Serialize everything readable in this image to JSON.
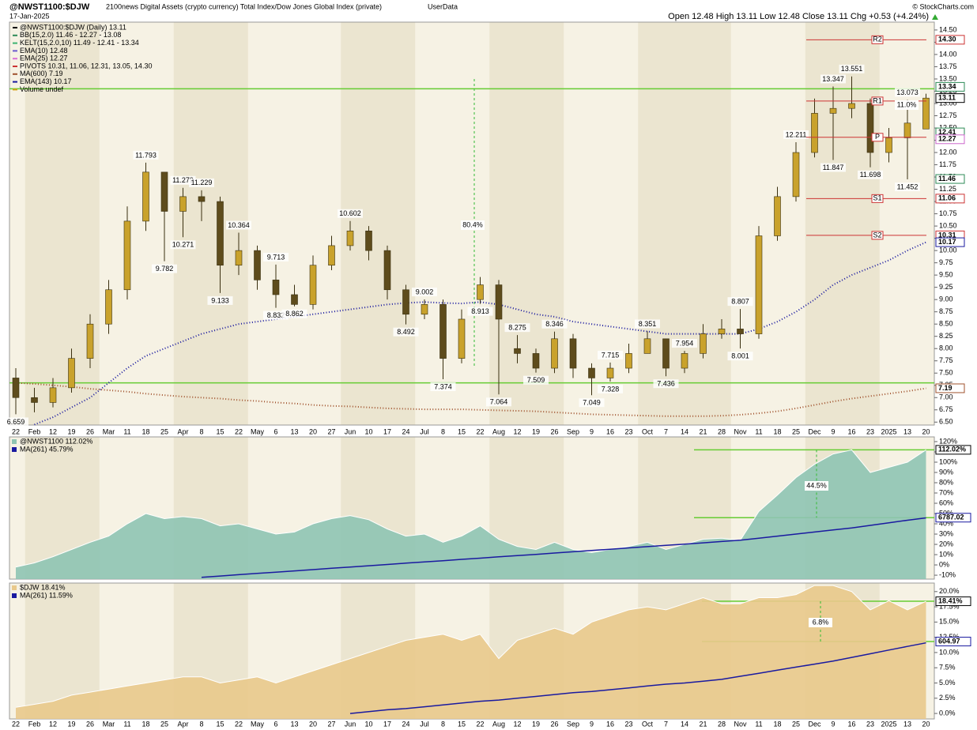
{
  "header": {
    "symbol": "@NWST1100:$DJW",
    "description": "2100news Digital Assets (crypto currency) Total Index/Dow Jones Global Index (private)",
    "source": "UserData",
    "date": "17-Jan-2025",
    "quote": "Open 12.48  High 13.11  Low 12.48  Close 13.11  Chg +0.53 (+4.24%)",
    "watermark": "© StockCharts.com"
  },
  "chart_data": [
    {
      "type": "candlestick",
      "name": "@NWST1100:$DJW (Daily) 13.11",
      "categories": [
        "22",
        "Feb",
        "12",
        "19",
        "26",
        "Mar",
        "11",
        "18",
        "25",
        "Apr",
        "8",
        "15",
        "22",
        "May",
        "6",
        "13",
        "20",
        "27",
        "Jun",
        "10",
        "17",
        "24",
        "Jul",
        "8",
        "15",
        "22",
        "Aug",
        "12",
        "19",
        "26",
        "Sep",
        "9",
        "16",
        "23",
        "Oct",
        "7",
        "14",
        "21",
        "28",
        "Nov",
        "11",
        "18",
        "25",
        "Dec",
        "9",
        "16",
        "23",
        "2025",
        "13",
        "20"
      ],
      "open": [
        7.4,
        7.0,
        6.9,
        7.2,
        7.8,
        8.5,
        9.2,
        10.6,
        11.6,
        10.8,
        11.1,
        11.0,
        9.7,
        10.0,
        9.4,
        9.1,
        8.9,
        9.7,
        10.1,
        10.4,
        10.0,
        9.2,
        8.7,
        8.9,
        7.8,
        9.0,
        9.3,
        8.0,
        7.9,
        7.6,
        8.2,
        7.6,
        7.4,
        7.6,
        7.9,
        8.2,
        7.6,
        7.9,
        8.3,
        8.4,
        8.3,
        10.3,
        11.1,
        12.0,
        12.8,
        12.9,
        13.0,
        12.0,
        12.3,
        12.48
      ],
      "high": [
        7.6,
        7.2,
        7.4,
        8.0,
        8.7,
        9.4,
        10.9,
        11.793,
        11.6,
        11.279,
        11.229,
        11.1,
        10.364,
        10.1,
        9.713,
        9.3,
        9.9,
        10.3,
        10.602,
        10.5,
        10.1,
        9.3,
        9.002,
        9.0,
        8.8,
        9.46,
        9.4,
        8.275,
        8.0,
        8.346,
        8.3,
        7.7,
        7.715,
        8.1,
        8.351,
        8.2,
        7.954,
        8.5,
        8.6,
        8.807,
        10.5,
        11.3,
        12.211,
        13.1,
        13.347,
        13.551,
        13.1,
        12.5,
        13.073,
        13.2
      ],
      "low": [
        6.659,
        6.7,
        6.8,
        7.1,
        7.6,
        8.3,
        9.0,
        10.4,
        9.782,
        10.271,
        10.6,
        9.133,
        9.5,
        9.2,
        8.832,
        8.862,
        8.8,
        9.6,
        10.0,
        9.8,
        9.0,
        8.492,
        8.6,
        7.374,
        7.7,
        8.913,
        7.064,
        7.7,
        7.509,
        7.5,
        7.4,
        7.049,
        7.328,
        7.5,
        7.9,
        7.436,
        7.5,
        7.8,
        8.2,
        8.001,
        8.2,
        10.2,
        11.0,
        11.9,
        11.847,
        12.7,
        11.698,
        11.8,
        11.452,
        12.48
      ],
      "close": [
        7.0,
        6.9,
        7.2,
        7.8,
        8.5,
        9.2,
        10.6,
        11.6,
        10.8,
        11.1,
        11.0,
        9.7,
        10.0,
        9.4,
        9.1,
        8.9,
        9.7,
        10.1,
        10.4,
        10.0,
        9.2,
        8.7,
        8.9,
        7.8,
        8.6,
        9.3,
        8.6,
        7.9,
        7.6,
        8.2,
        7.6,
        7.4,
        7.6,
        7.9,
        8.2,
        7.6,
        7.9,
        8.3,
        8.4,
        8.3,
        10.3,
        11.1,
        12.0,
        12.8,
        12.9,
        13.0,
        12.0,
        12.3,
        12.6,
        13.11
      ],
      "high_labels": [
        null,
        null,
        null,
        null,
        null,
        null,
        null,
        11.793,
        null,
        11.279,
        11.229,
        null,
        10.364,
        null,
        9.713,
        null,
        null,
        null,
        10.602,
        null,
        null,
        null,
        9.002,
        null,
        null,
        null,
        null,
        8.275,
        null,
        8.346,
        null,
        null,
        7.715,
        null,
        8.351,
        null,
        7.954,
        null,
        null,
        8.807,
        null,
        null,
        12.211,
        null,
        13.347,
        13.551,
        null,
        null,
        13.073,
        null
      ],
      "low_labels": [
        6.659,
        null,
        null,
        null,
        null,
        null,
        null,
        null,
        9.782,
        10.271,
        null,
        9.133,
        null,
        null,
        8.832,
        8.862,
        null,
        null,
        null,
        null,
        null,
        8.492,
        null,
        7.374,
        null,
        8.913,
        7.064,
        null,
        7.509,
        null,
        null,
        7.049,
        7.328,
        null,
        null,
        7.436,
        null,
        null,
        null,
        8.001,
        null,
        null,
        null,
        null,
        11.847,
        null,
        11.698,
        null,
        11.452,
        null
      ],
      "up_color": "#c9a22c",
      "down_color": "#5e4c1c",
      "indicators": [
        {
          "name": "BB(15,2.0) 11.46 - 12.27 - 13.08",
          "color": "#2e8b57"
        },
        {
          "name": "KELT(15,2.0,10) 11.49 - 12.41 - 13.34",
          "color": "#3cb371"
        },
        {
          "name": "EMA(10) 12.48",
          "color": "#6a5acd"
        },
        {
          "name": "EMA(25) 12.27",
          "color": "#da70d6"
        },
        {
          "name": "PIVOTS 10.31, 11.06, 12.31, 13.05, 14.30",
          "color": "#cc3333"
        },
        {
          "name": "Volume undef",
          "color": "#d4a017"
        }
      ],
      "series": [
        {
          "name": "MA(600) 7.19",
          "color": "#a0522d",
          "values": [
            7.3,
            7.28,
            7.25,
            7.22,
            7.18,
            7.15,
            7.12,
            7.08,
            7.05,
            7.02,
            7.0,
            6.98,
            6.95,
            6.93,
            6.9,
            6.88,
            6.85,
            6.83,
            6.82,
            6.8,
            6.78,
            6.77,
            6.76,
            6.76,
            6.76,
            6.75,
            6.74,
            6.73,
            6.72,
            6.7,
            6.68,
            6.66,
            6.65,
            6.64,
            6.63,
            6.62,
            6.62,
            6.62,
            6.63,
            6.65,
            6.68,
            6.72,
            6.78,
            6.85,
            6.92,
            6.98,
            7.03,
            7.08,
            7.13,
            7.19
          ]
        },
        {
          "name": "EMA(143) 10.17",
          "color": "#1a1aa0",
          "values": [
            null,
            6.45,
            6.6,
            6.8,
            7.0,
            7.3,
            7.6,
            7.85,
            8.0,
            8.15,
            8.3,
            8.4,
            8.5,
            8.55,
            8.6,
            8.65,
            8.7,
            8.75,
            8.8,
            8.85,
            8.9,
            8.93,
            8.95,
            8.93,
            8.92,
            8.95,
            8.9,
            8.8,
            8.7,
            8.65,
            8.55,
            8.5,
            8.45,
            8.4,
            8.35,
            8.3,
            8.3,
            8.3,
            8.3,
            8.3,
            8.4,
            8.55,
            8.75,
            9.0,
            9.3,
            9.5,
            9.65,
            9.8,
            10.0,
            10.17
          ]
        }
      ],
      "pivots": {
        "labels": [
          "R2",
          "R1",
          "P",
          "S1",
          "S2"
        ],
        "values": [
          14.3,
          13.05,
          12.31,
          11.06,
          10.31
        ],
        "color": "#cc3333"
      },
      "levels": [
        13.3,
        7.3
      ],
      "level_color": "#66cc33",
      "annotations": [
        "80.4%",
        "11.0%"
      ],
      "badges": [
        {
          "value": 14.3,
          "label": "14.30",
          "color": "#cc3333"
        },
        {
          "value": 13.34,
          "label": "13.34",
          "color": "#2e8b57"
        },
        {
          "value": 13.11,
          "label": "13.11",
          "color": "#000000"
        },
        {
          "value": 12.41,
          "label": "12.41",
          "color": "#2e8b57"
        },
        {
          "value": 12.27,
          "label": "12.27",
          "color": "#cc66cc"
        },
        {
          "value": 11.46,
          "label": "11.46",
          "color": "#2e8b57"
        },
        {
          "value": 11.06,
          "label": "11.06",
          "color": "#cc3333"
        },
        {
          "value": 10.31,
          "label": "10.31",
          "color": "#cc3333"
        },
        {
          "value": 10.17,
          "label": "10.17",
          "color": "#1a1aa0"
        },
        {
          "value": 7.19,
          "label": "7.19",
          "color": "#a0522d"
        }
      ],
      "ylim": [
        6.44,
        14.66
      ],
      "yticks": [
        {
          "value": 6.5,
          "label": "6.50"
        },
        6.75,
        {
          "value": 7,
          "label": "7.00"
        },
        7.25,
        {
          "value": 7.5,
          "label": "7.50"
        },
        7.75,
        {
          "value": 8,
          "label": "8.00"
        },
        8.25,
        {
          "value": 8.5,
          "label": "8.50"
        },
        8.75,
        {
          "value": 9,
          "label": "9.00"
        },
        9.25,
        {
          "value": 9.5,
          "label": "9.50"
        },
        9.75,
        {
          "value": 10,
          "label": "10.00"
        },
        10.25,
        {
          "value": 10.5,
          "label": "10.50"
        },
        10.75,
        {
          "value": 11,
          "label": "11.00"
        },
        11.25,
        {
          "value": 11.5,
          "label": "11.50"
        },
        11.75,
        {
          "value": 12,
          "label": "12.00"
        },
        12.25,
        {
          "value": 12.5,
          "label": "12.50"
        },
        12.75,
        {
          "value": 13,
          "label": "13.00"
        },
        13.25,
        {
          "value": 13.5,
          "label": "13.50"
        },
        13.75,
        {
          "value": 14,
          "label": "14.00"
        },
        14.25,
        {
          "value": 14.5,
          "label": "14.50"
        }
      ]
    },
    {
      "type": "area",
      "series": [
        {
          "name": "@NWST1100 112.02%",
          "color": "#8fc4b2",
          "values": [
            -2,
            2,
            8,
            15,
            22,
            28,
            40,
            50,
            45,
            47,
            45,
            38,
            40,
            35,
            30,
            32,
            40,
            45,
            48,
            44,
            35,
            28,
            30,
            22,
            28,
            38,
            25,
            18,
            15,
            22,
            15,
            12,
            15,
            18,
            22,
            15,
            20,
            25,
            26,
            24,
            52,
            68,
            85,
            98,
            108,
            112,
            90,
            95,
            100,
            112.02
          ]
        },
        {
          "name": "MA(261) 45.79%",
          "color": "#1a1aa0",
          "values": [
            null,
            null,
            null,
            null,
            null,
            null,
            null,
            null,
            null,
            null,
            -12,
            -10.8,
            -9.5,
            -8.3,
            -7.0,
            -5.8,
            -4.6,
            -3.3,
            -2.1,
            -0.8,
            0.4,
            1.7,
            2.9,
            4.1,
            5.4,
            6.6,
            7.9,
            9.1,
            10.3,
            11.6,
            12.8,
            14.1,
            15.3,
            16.6,
            17.8,
            19.0,
            20.3,
            21.5,
            22.8,
            24.0,
            26,
            28,
            30,
            32,
            34,
            36,
            38.5,
            41,
            43.5,
            45.79
          ]
        }
      ],
      "levels": [
        112.02,
        46
      ],
      "level_color": "#66cc33",
      "annotations": [
        "44.5%"
      ],
      "badges": [
        {
          "value": 112.02,
          "label": "112.02%",
          "color": "#000000"
        },
        {
          "value": 46,
          "label": "6787.02",
          "color": "#1a1aa0"
        }
      ],
      "ylim": [
        -13.8,
        124.6
      ],
      "yticks": [
        {
          "value": -10,
          "label": "-10%"
        },
        {
          "value": 0,
          "label": "0%"
        },
        {
          "value": 10,
          "label": "10%"
        },
        {
          "value": 20,
          "label": "20%"
        },
        {
          "value": 30,
          "label": "30%"
        },
        {
          "value": 40,
          "label": "40%"
        },
        {
          "value": 50,
          "label": "50%"
        },
        {
          "value": 60,
          "label": "60%"
        },
        {
          "value": 70,
          "label": "70%"
        },
        {
          "value": 80,
          "label": "80%"
        },
        {
          "value": 90,
          "label": "90%"
        },
        {
          "value": 100,
          "label": "100%"
        },
        {
          "value": 110,
          "label": "110%"
        },
        {
          "value": 120,
          "label": "120%"
        }
      ]
    },
    {
      "type": "area",
      "series": [
        {
          "name": "$DJW 18.41%",
          "color": "#e9c98b",
          "values": [
            1,
            1.5,
            2,
            3,
            3.5,
            4,
            4.5,
            5,
            5.5,
            6,
            6,
            5,
            5.5,
            6,
            5,
            6,
            7,
            8,
            9,
            10,
            11,
            12,
            12.5,
            13,
            12,
            13,
            9,
            12,
            13,
            14,
            13,
            15,
            16,
            17,
            17.5,
            17,
            18,
            19,
            18,
            18,
            19,
            19,
            19.5,
            21,
            21,
            20,
            17,
            18.5,
            17,
            18.41
          ]
        },
        {
          "name": "MA(261) 11.59%",
          "color": "#1a1aa0",
          "values": [
            null,
            null,
            null,
            null,
            null,
            null,
            null,
            null,
            null,
            null,
            null,
            null,
            null,
            null,
            null,
            null,
            null,
            null,
            0,
            0.3,
            0.6,
            0.8,
            1.1,
            1.4,
            1.7,
            2.0,
            2.2,
            2.5,
            2.8,
            3.1,
            3.4,
            3.6,
            3.9,
            4.2,
            4.5,
            4.8,
            5.0,
            5.3,
            5.6,
            6.1,
            6.6,
            7.1,
            7.6,
            8.1,
            8.6,
            9.2,
            9.8,
            10.4,
            11.0,
            11.59
          ]
        }
      ],
      "levels": [
        18.41,
        11.8
      ],
      "level_color": "#66cc33",
      "annotations": [
        "6.8%"
      ],
      "badges": [
        {
          "value": 18.41,
          "label": "18.41%",
          "color": "#000000"
        },
        {
          "value": 11.8,
          "label": "604.97",
          "color": "#1a1aa0"
        }
      ],
      "ylim": [
        -0.9,
        21.4
      ],
      "yticks": [
        {
          "value": 0,
          "label": "0.0%"
        },
        {
          "value": 2.5,
          "label": "2.5%"
        },
        {
          "value": 5,
          "label": "5.0%"
        },
        {
          "value": 7.5,
          "label": "7.5%"
        },
        {
          "value": 10,
          "label": "10.0%"
        },
        {
          "value": 12.5,
          "label": "12.5%"
        },
        {
          "value": 15,
          "label": "15.0%"
        },
        {
          "value": 17.5,
          "label": "17.5%"
        },
        {
          "value": 20,
          "label": "20.0%"
        }
      ]
    }
  ]
}
